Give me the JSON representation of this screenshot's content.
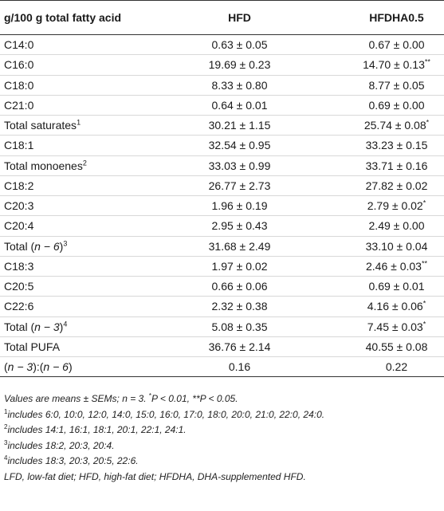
{
  "table": {
    "headers": [
      "g/100 g total fatty acid",
      "HFD",
      "HFDHA0.5"
    ],
    "rows": [
      {
        "pre": "",
        "label": "C14:0",
        "post": "",
        "sup": "",
        "hfd": "0.63 ± 0.05",
        "hfdha": "0.67 ± 0.00",
        "mark": ""
      },
      {
        "pre": "",
        "label": "C16:0",
        "post": "",
        "sup": "",
        "hfd": "19.69 ± 0.23",
        "hfdha": "14.70 ± 0.13",
        "mark": "**"
      },
      {
        "pre": "",
        "label": "C18:0",
        "post": "",
        "sup": "",
        "hfd": "8.33 ± 0.80",
        "hfdha": "8.77 ± 0.05",
        "mark": ""
      },
      {
        "pre": "",
        "label": "C21:0",
        "post": "",
        "sup": "",
        "hfd": "0.64 ± 0.01",
        "hfdha": "0.69 ± 0.00",
        "mark": ""
      },
      {
        "pre": "",
        "label": "Total saturates",
        "post": "",
        "sup": "1",
        "hfd": "30.21 ± 1.15",
        "hfdha": "25.74 ± 0.08",
        "mark": "*"
      },
      {
        "pre": "",
        "label": "C18:1",
        "post": "",
        "sup": "",
        "hfd": "32.54 ± 0.95",
        "hfdha": "33.23 ± 0.15",
        "mark": ""
      },
      {
        "pre": "",
        "label": "Total monoenes",
        "post": "",
        "sup": "2",
        "hfd": "33.03 ± 0.99",
        "hfdha": "33.71 ± 0.16",
        "mark": ""
      },
      {
        "pre": "",
        "label": "C18:2",
        "post": "",
        "sup": "",
        "hfd": "26.77 ± 2.73",
        "hfdha": "27.82 ± 0.02",
        "mark": ""
      },
      {
        "pre": "",
        "label": "C20:3",
        "post": "",
        "sup": "",
        "hfd": "1.96 ± 0.19",
        "hfdha": "2.79 ± 0.02",
        "mark": "*"
      },
      {
        "pre": "",
        "label": "C20:4",
        "post": "",
        "sup": "",
        "hfd": "2.95 ± 0.43",
        "hfdha": "2.49 ± 0.00",
        "mark": ""
      },
      {
        "pre": "Total (",
        "label": "n − 6",
        "post": ")",
        "sup": "3",
        "hfd": "31.68 ± 2.49",
        "hfdha": "33.10 ± 0.04",
        "mark": ""
      },
      {
        "pre": "",
        "label": "C18:3",
        "post": "",
        "sup": "",
        "hfd": "1.97 ± 0.02",
        "hfdha": "2.46 ± 0.03",
        "mark": "**"
      },
      {
        "pre": "",
        "label": "C20:5",
        "post": "",
        "sup": "",
        "hfd": "0.66 ± 0.06",
        "hfdha": "0.69 ± 0.01",
        "mark": ""
      },
      {
        "pre": "",
        "label": "C22:6",
        "post": "",
        "sup": "",
        "hfd": "2.32 ± 0.38",
        "hfdha": "4.16 ± 0.06",
        "mark": "*"
      },
      {
        "pre": "Total (",
        "label": "n − 3",
        "post": ")",
        "sup": "4",
        "hfd": "5.08 ± 0.35",
        "hfdha": "7.45 ± 0.03",
        "mark": "*"
      },
      {
        "pre": "",
        "label": "Total PUFA",
        "post": "",
        "sup": "",
        "hfd": "36.76 ± 2.14",
        "hfdha": "40.55 ± 0.08",
        "mark": ""
      },
      {
        "pre": "(",
        "label": "n − 3",
        "post": "):(n − 6)",
        "sup": "",
        "hfd": "0.16",
        "hfdha": "0.22",
        "mark": ""
      }
    ]
  },
  "notes": {
    "values": {
      "a": "Values are means ± SEMs; n = 3. ",
      "star": "*",
      "b": "P < 0.01, **P < 0.05."
    },
    "footnotes": [
      {
        "num": "1",
        "text": "includes 6:0, 10:0, 12:0, 14:0, 15:0, 16:0, 17:0, 18:0, 20:0, 21:0, 22:0, 24:0."
      },
      {
        "num": "2",
        "text": "includes 14:1, 16:1, 18:1, 20:1, 22:1, 24:1."
      },
      {
        "num": "3",
        "text": "includes 18:2, 20:3, 20:4."
      },
      {
        "num": "4",
        "text": "includes 18:3, 20:3, 20:5, 22:6."
      }
    ],
    "abbreviations": "LFD, low-fat diet; HFD, high-fat diet; HFDHA, DHA-supplemented HFD."
  }
}
